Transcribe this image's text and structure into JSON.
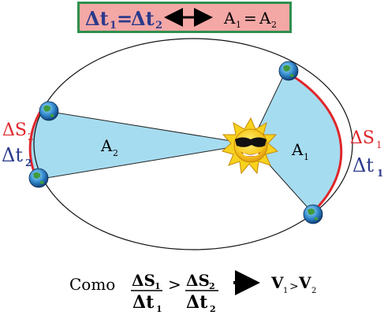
{
  "header": {
    "left_delta": "Δt",
    "left_sub1": "1",
    "equals_sign": "=",
    "right_delta": "Δt",
    "right_sub2": "2",
    "area_left": "A",
    "area_left_sub": "1",
    "area_equals": "=",
    "area_right": "A",
    "area_right_sub": "2"
  },
  "labels": {
    "A1": "A",
    "A1_sub": "1",
    "A2": "A",
    "A2_sub": "2",
    "dS1": "ΔS",
    "dS1_sub": "1",
    "dt1": "Δt",
    "dt1_sub": "1",
    "dS2": "ΔS",
    "dS2_sub": "2",
    "dt2": "Δt",
    "dt2_sub": "2"
  },
  "conclusion": {
    "word": "Como",
    "num1": "ΔS",
    "num1_sub": "1",
    "den1": "Δt",
    "den1_sub": "1",
    "gt": ">",
    "num2": "ΔS",
    "num2_sub": "2",
    "den2": "Δt",
    "den2_sub": "2",
    "v1": "V",
    "v1_sub": "1",
    "v_gt": ">",
    "v2": "V",
    "v2_sub": "2"
  },
  "colors": {
    "sector_fill": "#a6dcf0",
    "arc_red": "#e0262b",
    "dt_blue": "#2b3a8c",
    "header_bg": "#f4a8a6",
    "header_border": "#2f8f4f",
    "sun_yellow": "#f7d21e"
  }
}
